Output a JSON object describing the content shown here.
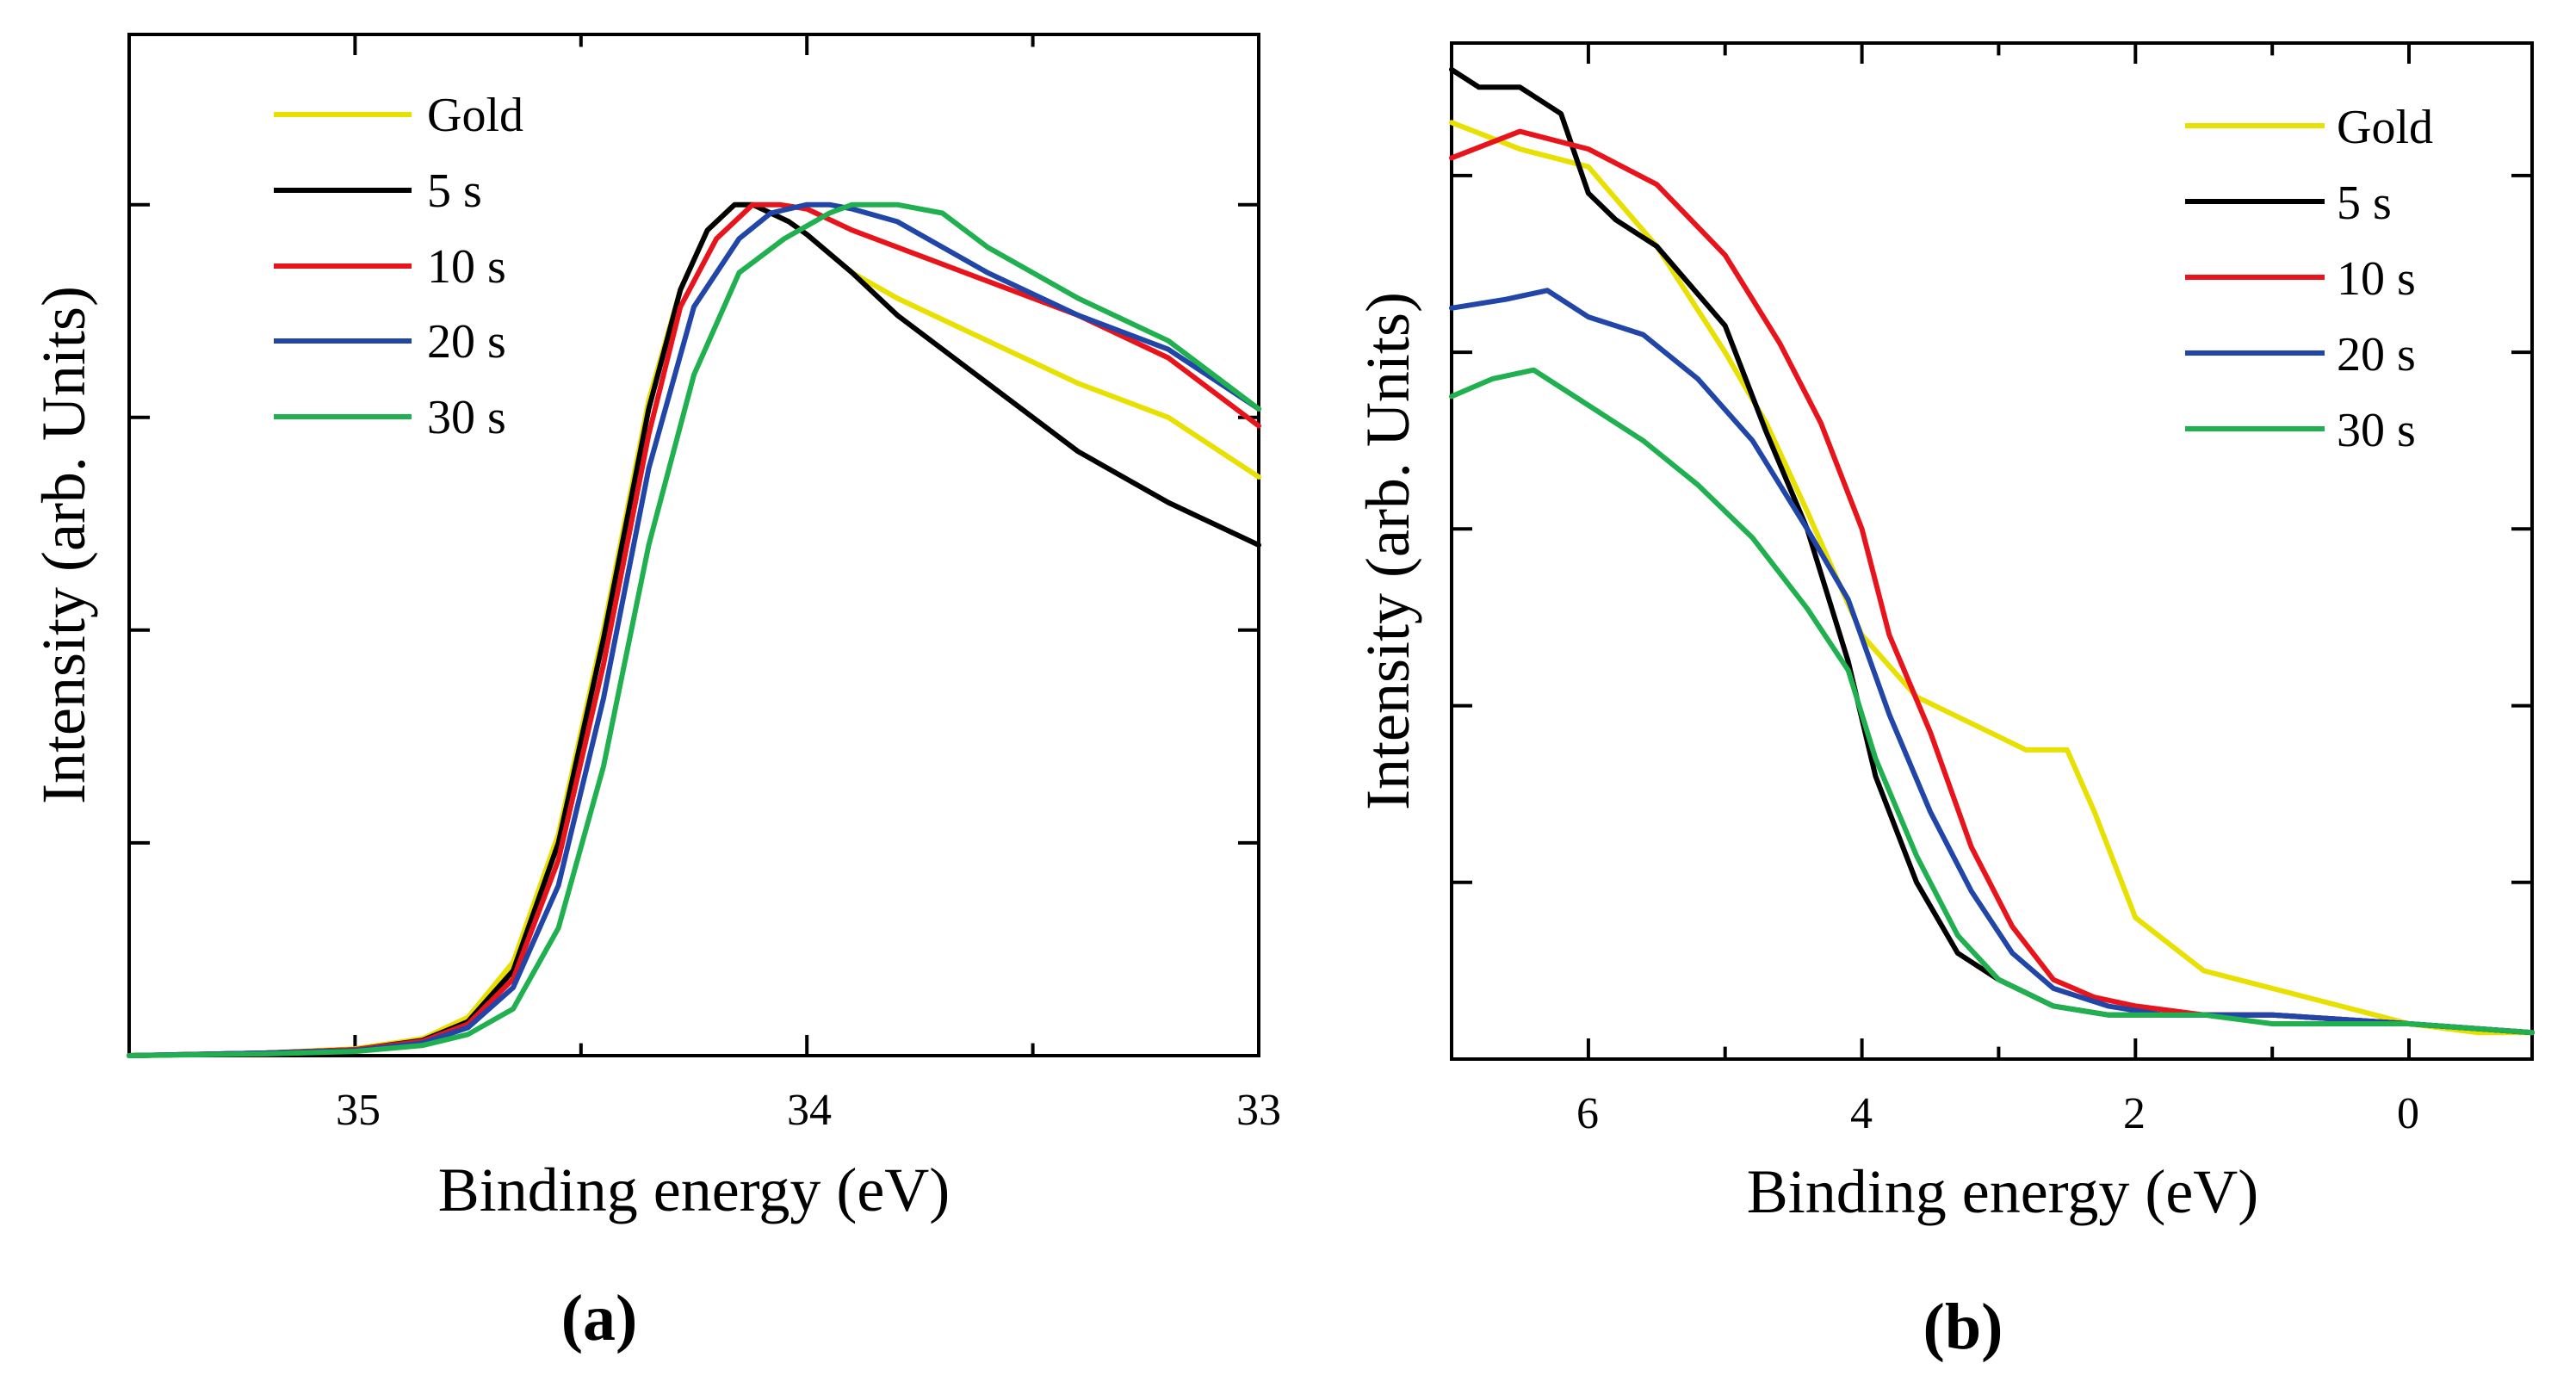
{
  "chart_data": [
    {
      "type": "line",
      "panel_label": "(a)",
      "xlabel": "Binding energy (eV)",
      "ylabel": "Intensity (arb. Units)",
      "xlim": [
        35.5,
        33.0
      ],
      "ylim": [
        0,
        1.2
      ],
      "x_ticks": [
        35,
        34,
        33
      ],
      "x_tick_labels": [
        "35",
        "34",
        "33"
      ],
      "y_ticks": [
        0.25,
        0.5,
        0.75,
        1.0
      ],
      "y_tick_labels_shown": false,
      "legend_position": "top-left",
      "series": [
        {
          "name": "Gold",
          "color": "#e8e000",
          "x": [
            35.5,
            35.2,
            35.0,
            34.85,
            34.75,
            34.65,
            34.55,
            34.45,
            34.35,
            34.28,
            34.22,
            34.16,
            34.12,
            34.08,
            34.04,
            34.0,
            33.9,
            33.8,
            33.6,
            33.4,
            33.2,
            33.0
          ],
          "y": [
            0,
            0.003,
            0.008,
            0.02,
            0.045,
            0.11,
            0.26,
            0.5,
            0.77,
            0.9,
            0.97,
            1.0,
            1.0,
            0.99,
            0.98,
            0.965,
            0.92,
            0.89,
            0.84,
            0.79,
            0.75,
            0.68
          ]
        },
        {
          "name": "5 s",
          "color": "#000000",
          "x": [
            35.5,
            35.2,
            35.0,
            34.85,
            34.75,
            34.65,
            34.55,
            34.45,
            34.35,
            34.28,
            34.22,
            34.16,
            34.12,
            34.08,
            34.04,
            34.0,
            33.9,
            33.8,
            33.6,
            33.4,
            33.2,
            33.0
          ],
          "y": [
            0,
            0.003,
            0.007,
            0.018,
            0.04,
            0.1,
            0.25,
            0.49,
            0.76,
            0.9,
            0.97,
            1.0,
            1.0,
            0.99,
            0.98,
            0.965,
            0.92,
            0.87,
            0.79,
            0.71,
            0.65,
            0.6
          ]
        },
        {
          "name": "10 s",
          "color": "#e8141c",
          "x": [
            35.5,
            35.2,
            35.0,
            34.85,
            34.75,
            34.65,
            34.55,
            34.45,
            34.35,
            34.28,
            34.2,
            34.12,
            34.06,
            34.0,
            33.9,
            33.8,
            33.6,
            33.4,
            33.2,
            33.0
          ],
          "y": [
            0,
            0.003,
            0.007,
            0.017,
            0.037,
            0.09,
            0.23,
            0.46,
            0.73,
            0.88,
            0.96,
            1.0,
            1.0,
            0.995,
            0.97,
            0.95,
            0.91,
            0.87,
            0.82,
            0.74
          ]
        },
        {
          "name": "20 s",
          "color": "#2146a8",
          "x": [
            35.5,
            35.2,
            35.0,
            34.85,
            34.75,
            34.65,
            34.55,
            34.45,
            34.35,
            34.25,
            34.15,
            34.08,
            34.0,
            33.95,
            33.9,
            33.8,
            33.6,
            33.4,
            33.2,
            33.0
          ],
          "y": [
            0,
            0.003,
            0.006,
            0.015,
            0.033,
            0.08,
            0.2,
            0.42,
            0.69,
            0.88,
            0.96,
            0.99,
            1.0,
            1.0,
            0.995,
            0.98,
            0.92,
            0.87,
            0.83,
            0.76
          ]
        },
        {
          "name": "30 s",
          "color": "#20b050",
          "x": [
            35.5,
            35.2,
            35.0,
            34.85,
            34.75,
            34.65,
            34.55,
            34.45,
            34.35,
            34.25,
            34.15,
            34.05,
            34.0,
            33.95,
            33.9,
            33.85,
            33.8,
            33.7,
            33.6,
            33.4,
            33.2,
            33.0
          ],
          "y": [
            0,
            0.002,
            0.005,
            0.012,
            0.025,
            0.055,
            0.15,
            0.34,
            0.6,
            0.8,
            0.92,
            0.96,
            0.975,
            0.99,
            1.0,
            1.0,
            1.0,
            0.99,
            0.95,
            0.89,
            0.84,
            0.76
          ]
        }
      ]
    },
    {
      "type": "line",
      "panel_label": "(b)",
      "xlabel": "Binding energy (eV)",
      "ylabel": "Intensity (arb. Units)",
      "xlim": [
        7.0,
        -0.9
      ],
      "ylim": [
        0,
        1.15
      ],
      "x_ticks": [
        6,
        4,
        2,
        0
      ],
      "x_tick_labels": [
        "6",
        "4",
        "2",
        "0"
      ],
      "y_ticks": [
        0.2,
        0.4,
        0.6,
        0.8,
        1.0
      ],
      "y_tick_labels_shown": false,
      "legend_position": "top-right",
      "series": [
        {
          "name": "Gold",
          "color": "#e8e000",
          "x": [
            7.0,
            6.5,
            6.0,
            5.5,
            5.0,
            4.7,
            4.4,
            4.0,
            3.6,
            3.2,
            2.8,
            2.5,
            2.3,
            2.0,
            1.5,
            1.0,
            0.5,
            0.0,
            -0.5,
            -0.9
          ],
          "y": [
            1.06,
            1.03,
            1.01,
            0.92,
            0.8,
            0.72,
            0.62,
            0.48,
            0.41,
            0.38,
            0.35,
            0.35,
            0.28,
            0.16,
            0.1,
            0.08,
            0.06,
            0.04,
            0.03,
            0.03
          ]
        },
        {
          "name": "5 s",
          "color": "#000000",
          "x": [
            7.0,
            6.8,
            6.5,
            6.2,
            6.0,
            5.8,
            5.5,
            5.0,
            4.7,
            4.4,
            4.1,
            3.9,
            3.6,
            3.3,
            3.0,
            2.6,
            2.2,
            1.5,
            1.0,
            0.0,
            -0.9
          ],
          "y": [
            1.12,
            1.1,
            1.1,
            1.07,
            0.98,
            0.95,
            0.92,
            0.83,
            0.71,
            0.6,
            0.45,
            0.32,
            0.2,
            0.12,
            0.09,
            0.06,
            0.05,
            0.05,
            0.05,
            0.04,
            0.03
          ]
        },
        {
          "name": "10 s",
          "color": "#e8141c",
          "x": [
            7.0,
            6.5,
            6.0,
            5.5,
            5.0,
            4.6,
            4.3,
            4.0,
            3.8,
            3.5,
            3.2,
            2.9,
            2.6,
            2.3,
            2.0,
            1.5,
            1.0,
            0.0,
            -0.9
          ],
          "y": [
            1.02,
            1.05,
            1.03,
            0.99,
            0.91,
            0.81,
            0.72,
            0.6,
            0.48,
            0.37,
            0.24,
            0.15,
            0.09,
            0.07,
            0.06,
            0.05,
            0.05,
            0.04,
            0.03
          ]
        },
        {
          "name": "20 s",
          "color": "#2146a8",
          "x": [
            7.0,
            6.6,
            6.3,
            6.0,
            5.6,
            5.2,
            4.8,
            4.4,
            4.1,
            3.8,
            3.5,
            3.2,
            2.9,
            2.6,
            2.2,
            1.8,
            1.5,
            1.0,
            0.0,
            -0.9
          ],
          "y": [
            0.85,
            0.86,
            0.87,
            0.84,
            0.82,
            0.77,
            0.7,
            0.6,
            0.52,
            0.39,
            0.28,
            0.19,
            0.12,
            0.08,
            0.06,
            0.05,
            0.05,
            0.05,
            0.04,
            0.03
          ]
        },
        {
          "name": "30 s",
          "color": "#20b050",
          "x": [
            7.0,
            6.7,
            6.4,
            6.0,
            5.6,
            5.2,
            4.8,
            4.4,
            4.1,
            3.9,
            3.6,
            3.3,
            3.0,
            2.6,
            2.2,
            1.8,
            1.5,
            1.0,
            0.0,
            -0.9
          ],
          "y": [
            0.75,
            0.77,
            0.78,
            0.74,
            0.7,
            0.65,
            0.59,
            0.51,
            0.44,
            0.34,
            0.23,
            0.14,
            0.09,
            0.06,
            0.05,
            0.05,
            0.05,
            0.04,
            0.04,
            0.03
          ]
        }
      ]
    }
  ]
}
